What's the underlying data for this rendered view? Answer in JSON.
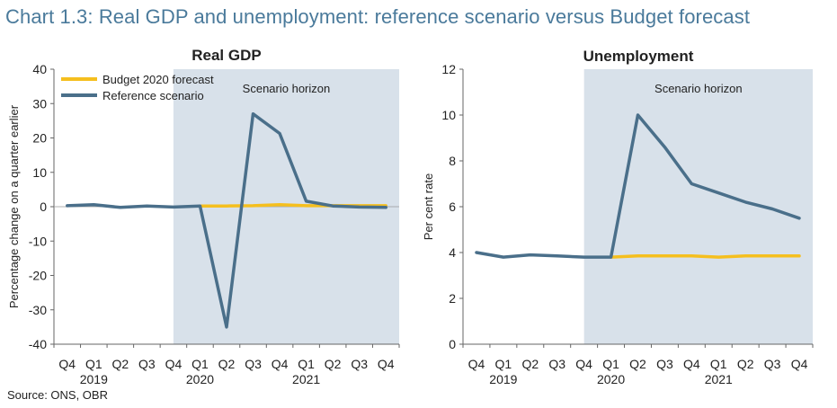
{
  "title": "Chart 1.3: Real GDP and unemployment: reference scenario versus Budget forecast",
  "source": "Source: ONS, OBR",
  "colors": {
    "title": "#4a7a9b",
    "budget": "#f5bf1e",
    "reference": "#4a6f8a",
    "shading": "#d8e1ea"
  },
  "chart_data": [
    {
      "type": "line",
      "title": "Real GDP",
      "ylabel": "Percentage change on a quarter earlier",
      "xlabel": "",
      "ylim": [
        -40,
        40
      ],
      "yticks": [
        40,
        30,
        20,
        10,
        0,
        -10,
        -20,
        -30,
        -40
      ],
      "categories": [
        "Q4",
        "Q1",
        "Q2",
        "Q3",
        "Q4",
        "Q1",
        "Q2",
        "Q3",
        "Q4",
        "Q1",
        "Q2",
        "Q3",
        "Q4"
      ],
      "years": [
        {
          "label": "2019",
          "index": 1
        },
        {
          "label": "2020",
          "index": 5
        },
        {
          "label": "2021",
          "index": 9
        }
      ],
      "shade_start_index": 4.5,
      "shade_label": "Scenario horizon",
      "legend": [
        "Budget 2020  forecast",
        "Reference scenario"
      ],
      "series": [
        {
          "name": "Budget 2020  forecast",
          "color": "#f5bf1e",
          "values": [
            null,
            null,
            null,
            null,
            null,
            0.2,
            0.2,
            0.3,
            0.6,
            0.3,
            0.3,
            0.3,
            0.3
          ]
        },
        {
          "name": "Reference scenario",
          "color": "#4a6f8a",
          "values": [
            0.3,
            0.6,
            -0.2,
            0.2,
            -0.1,
            0.2,
            -35,
            27,
            21.3,
            1.6,
            0.2,
            -0.1,
            -0.2
          ]
        }
      ]
    },
    {
      "type": "line",
      "title": "Unemployment",
      "ylabel": "Per cent rate",
      "xlabel": "",
      "ylim": [
        0,
        12
      ],
      "yticks": [
        12,
        10,
        8,
        6,
        4,
        2,
        0
      ],
      "categories": [
        "Q4",
        "Q1",
        "Q2",
        "Q3",
        "Q4",
        "Q1",
        "Q2",
        "Q3",
        "Q4",
        "Q1",
        "Q2",
        "Q3",
        "Q4"
      ],
      "years": [
        {
          "label": "2019",
          "index": 1
        },
        {
          "label": "2020",
          "index": 5
        },
        {
          "label": "2021",
          "index": 9
        }
      ],
      "shade_start_index": 4.5,
      "shade_label": "Scenario horizon",
      "series": [
        {
          "name": "Budget 2020  forecast",
          "color": "#f5bf1e",
          "values": [
            null,
            null,
            null,
            null,
            null,
            3.8,
            3.85,
            3.85,
            3.85,
            3.8,
            3.85,
            3.85,
            3.85
          ]
        },
        {
          "name": "Reference scenario",
          "color": "#4a6f8a",
          "values": [
            4.0,
            3.8,
            3.9,
            3.85,
            3.8,
            3.8,
            10.0,
            8.6,
            7.0,
            6.6,
            6.2,
            5.9,
            5.5
          ]
        }
      ]
    }
  ]
}
